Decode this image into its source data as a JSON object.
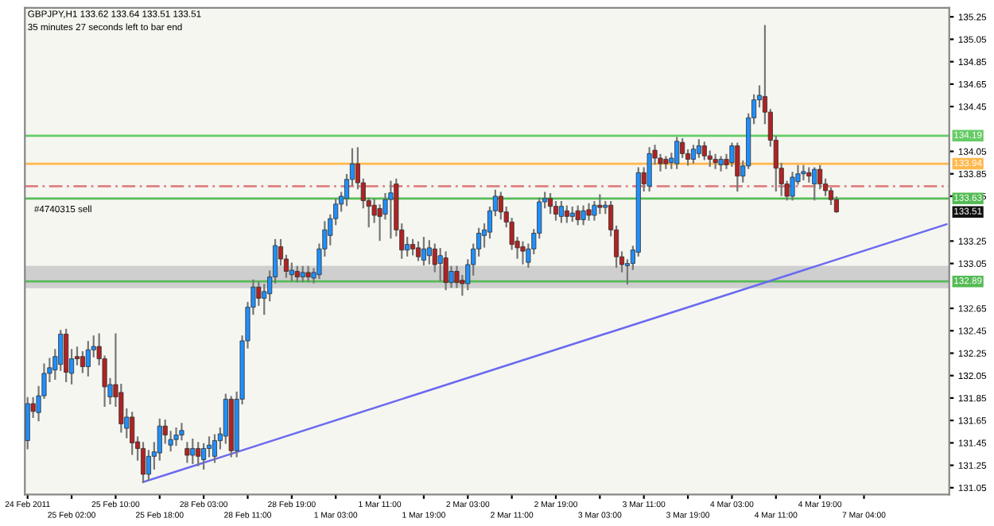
{
  "chart_data": {
    "type": "candlestick",
    "title": "GBPJPY,H1 133.62 133.64 133.51 133.51",
    "subtitle": "35 minutes 27 seconds left to bar end",
    "annotations": [
      "#4740315 sell",
      {
        "text": "133.51",
        "y": 133.51
      }
    ],
    "categories": [
      "24 Feb 2011",
      null,
      null,
      null,
      null,
      null,
      null,
      null,
      "25 Feb 02:00",
      null,
      null,
      null,
      null,
      null,
      null,
      null,
      "25 Feb 10:00",
      null,
      null,
      null,
      null,
      null,
      null,
      null,
      "25 Feb 18:00",
      null,
      null,
      null,
      null,
      null,
      null,
      null,
      "28 Feb 03:00",
      null,
      null,
      null,
      null,
      null,
      null,
      null,
      "28 Feb 11:00",
      null,
      null,
      null,
      null,
      null,
      null,
      null,
      "28 Feb 19:00",
      null,
      null,
      null,
      null,
      null,
      null,
      null,
      "1 Mar 03:00",
      null,
      null,
      null,
      null,
      null,
      null,
      null,
      "1 Mar 11:00",
      null,
      null,
      null,
      null,
      null,
      null,
      null,
      "1 Mar 19:00",
      null,
      null,
      null,
      null,
      null,
      null,
      null,
      "2 Mar 03:00",
      null,
      null,
      null,
      null,
      null,
      null,
      null,
      "2 Mar 11:00",
      null,
      null,
      null,
      null,
      null,
      null,
      null,
      "2 Mar 19:00",
      null,
      null,
      null,
      null,
      null,
      null,
      null,
      "3 Mar 03:00",
      null,
      null,
      null,
      null,
      null,
      null,
      null,
      "3 Mar 11:00",
      null,
      null,
      null,
      null,
      null,
      null,
      null,
      "3 Mar 19:00",
      null,
      null,
      null,
      null,
      null,
      null,
      null,
      "4 Mar 03:00",
      null,
      null,
      null,
      null,
      null,
      null,
      null,
      "4 Mar 11:00",
      null,
      null,
      null,
      null,
      null,
      null,
      null,
      "4 Mar 19:00",
      null,
      null,
      null,
      null,
      null,
      null,
      null,
      "7 Mar 04:00",
      null,
      null,
      null,
      null,
      null,
      null,
      null,
      null,
      null,
      null,
      null,
      null,
      null,
      null,
      null
    ],
    "ohlc": [
      [
        131.47,
        131.85,
        131.4,
        131.8
      ],
      [
        131.8,
        131.85,
        131.68,
        131.73
      ],
      [
        131.72,
        131.95,
        131.65,
        131.87
      ],
      [
        131.87,
        132.15,
        131.85,
        132.07
      ],
      [
        132.07,
        132.2,
        132.0,
        132.12
      ],
      [
        132.1,
        132.28,
        132.02,
        132.22
      ],
      [
        132.15,
        132.45,
        132.1,
        132.42
      ],
      [
        132.42,
        132.46,
        132.0,
        132.08
      ],
      [
        132.07,
        132.28,
        131.98,
        132.2
      ],
      [
        132.22,
        132.3,
        132.15,
        132.2
      ],
      [
        132.22,
        132.26,
        132.08,
        132.13
      ],
      [
        132.13,
        132.35,
        132.05,
        132.28
      ],
      [
        132.28,
        132.4,
        132.22,
        132.31
      ],
      [
        132.31,
        132.42,
        132.15,
        132.2
      ],
      [
        132.2,
        132.22,
        131.78,
        131.95
      ],
      [
        131.86,
        132.02,
        131.8,
        131.97
      ],
      [
        131.97,
        132.42,
        131.78,
        131.86
      ],
      [
        131.9,
        131.97,
        131.55,
        131.62
      ],
      [
        131.58,
        131.75,
        131.5,
        131.68
      ],
      [
        131.68,
        131.72,
        131.35,
        131.45
      ],
      [
        131.46,
        131.5,
        131.3,
        131.4
      ],
      [
        131.4,
        131.45,
        131.1,
        131.17
      ],
      [
        131.17,
        131.38,
        131.12,
        131.33
      ],
      [
        131.33,
        131.45,
        131.22,
        131.37
      ],
      [
        131.36,
        131.66,
        131.3,
        131.6
      ],
      [
        131.6,
        131.65,
        131.45,
        131.52
      ],
      [
        131.43,
        131.55,
        131.38,
        131.48
      ],
      [
        131.48,
        131.58,
        131.43,
        131.52
      ],
      [
        131.52,
        131.62,
        131.48,
        131.56
      ],
      [
        131.4,
        131.45,
        131.28,
        131.34
      ],
      [
        131.34,
        131.48,
        131.27,
        131.4
      ],
      [
        131.4,
        131.45,
        131.25,
        131.33
      ],
      [
        131.3,
        131.44,
        131.22,
        131.4
      ],
      [
        131.4,
        131.5,
        131.33,
        131.43
      ],
      [
        131.33,
        131.52,
        131.28,
        131.47
      ],
      [
        131.47,
        131.58,
        131.4,
        131.53
      ],
      [
        131.51,
        131.88,
        131.45,
        131.84
      ],
      [
        131.84,
        131.86,
        131.33,
        131.38
      ],
      [
        131.38,
        131.9,
        131.33,
        131.84
      ],
      [
        131.84,
        132.4,
        131.8,
        132.36
      ],
      [
        132.36,
        132.7,
        132.3,
        132.66
      ],
      [
        132.66,
        132.9,
        132.6,
        132.84
      ],
      [
        132.84,
        132.88,
        132.68,
        132.74
      ],
      [
        132.74,
        132.86,
        132.6,
        132.8
      ],
      [
        132.78,
        132.98,
        132.72,
        132.93
      ],
      [
        132.93,
        133.26,
        132.88,
        133.21
      ],
      [
        133.2,
        133.26,
        133.04,
        133.09
      ],
      [
        133.09,
        133.12,
        132.93,
        132.98
      ],
      [
        132.95,
        133.05,
        132.9,
        132.99
      ],
      [
        132.98,
        133.02,
        132.89,
        132.93
      ],
      [
        132.93,
        133.02,
        132.89,
        132.97
      ],
      [
        132.97,
        133.02,
        132.89,
        132.93
      ],
      [
        132.92,
        133.0,
        132.88,
        132.97
      ],
      [
        132.95,
        133.22,
        132.92,
        133.18
      ],
      [
        133.18,
        133.42,
        133.12,
        133.35
      ],
      [
        133.3,
        133.48,
        133.22,
        133.45
      ],
      [
        133.45,
        133.62,
        133.4,
        133.58
      ],
      [
        133.58,
        133.68,
        133.52,
        133.65
      ],
      [
        133.63,
        133.84,
        133.57,
        133.8
      ],
      [
        133.8,
        134.07,
        133.75,
        133.94
      ],
      [
        133.94,
        134.08,
        133.72,
        133.77
      ],
      [
        133.77,
        133.8,
        133.55,
        133.61
      ],
      [
        133.61,
        133.63,
        133.38,
        133.56
      ],
      [
        133.57,
        133.62,
        133.42,
        133.48
      ],
      [
        133.54,
        133.57,
        133.26,
        133.47
      ],
      [
        133.49,
        133.67,
        133.45,
        133.62
      ],
      [
        133.62,
        133.78,
        133.28,
        133.68
      ],
      [
        133.76,
        133.8,
        133.3,
        133.35
      ],
      [
        133.35,
        133.4,
        133.1,
        133.17
      ],
      [
        133.17,
        133.28,
        133.12,
        133.22
      ],
      [
        133.22,
        133.26,
        133.13,
        133.18
      ],
      [
        133.19,
        133.24,
        133.08,
        133.11
      ],
      [
        133.08,
        133.28,
        133.04,
        133.18
      ],
      [
        133.12,
        133.25,
        133.05,
        133.19
      ],
      [
        133.18,
        133.22,
        132.98,
        133.04
      ],
      [
        133.05,
        133.18,
        132.9,
        133.12
      ],
      [
        133.1,
        133.15,
        132.82,
        132.88
      ],
      [
        132.88,
        133.02,
        132.84,
        132.98
      ],
      [
        132.98,
        133.02,
        132.84,
        132.88
      ],
      [
        132.9,
        132.94,
        132.77,
        132.87
      ],
      [
        132.87,
        133.08,
        132.82,
        133.04
      ],
      [
        133.04,
        133.22,
        132.95,
        133.18
      ],
      [
        133.18,
        133.36,
        133.12,
        133.32
      ],
      [
        133.3,
        133.4,
        133.2,
        133.35
      ],
      [
        133.33,
        133.55,
        133.28,
        133.52
      ],
      [
        133.52,
        133.7,
        133.48,
        133.65
      ],
      [
        133.65,
        133.68,
        133.45,
        133.51
      ],
      [
        133.51,
        133.55,
        133.38,
        133.42
      ],
      [
        133.42,
        133.45,
        133.18,
        133.22
      ],
      [
        133.25,
        133.28,
        133.1,
        133.19
      ],
      [
        133.2,
        133.24,
        133.05,
        133.16
      ],
      [
        133.06,
        133.22,
        133.02,
        133.18
      ],
      [
        133.18,
        133.35,
        133.14,
        133.32
      ],
      [
        133.32,
        133.63,
        133.28,
        133.6
      ],
      [
        133.6,
        133.68,
        133.55,
        133.63
      ],
      [
        133.63,
        133.67,
        133.5,
        133.56
      ],
      [
        133.56,
        133.6,
        133.44,
        133.49
      ],
      [
        133.47,
        133.6,
        133.42,
        133.56
      ],
      [
        133.52,
        133.56,
        133.42,
        133.47
      ],
      [
        133.47,
        133.55,
        133.43,
        133.5
      ],
      [
        133.52,
        133.56,
        133.4,
        133.44
      ],
      [
        133.44,
        133.56,
        133.4,
        133.52
      ],
      [
        133.53,
        133.58,
        133.44,
        133.48
      ],
      [
        133.48,
        133.6,
        133.44,
        133.57
      ],
      [
        133.57,
        133.66,
        133.5,
        133.55
      ],
      [
        133.55,
        133.6,
        133.5,
        133.57
      ],
      [
        133.57,
        133.6,
        133.3,
        133.35
      ],
      [
        133.35,
        133.38,
        133.02,
        133.11
      ],
      [
        133.11,
        133.15,
        132.98,
        133.04
      ],
      [
        133.03,
        133.08,
        132.87,
        133.05
      ],
      [
        133.05,
        133.2,
        133.0,
        133.17
      ],
      [
        133.15,
        133.9,
        133.12,
        133.86
      ],
      [
        133.86,
        133.9,
        133.7,
        133.76
      ],
      [
        133.74,
        134.08,
        133.7,
        134.03
      ],
      [
        134.06,
        134.1,
        133.94,
        133.99
      ],
      [
        133.99,
        134.02,
        133.88,
        133.94
      ],
      [
        133.98,
        134.0,
        133.9,
        133.94
      ],
      [
        133.95,
        134.03,
        133.9,
        133.99
      ],
      [
        133.94,
        134.17,
        133.9,
        134.14
      ],
      [
        134.13,
        134.16,
        134.0,
        134.03
      ],
      [
        134.03,
        134.06,
        133.93,
        133.98
      ],
      [
        133.98,
        134.1,
        133.95,
        134.07
      ],
      [
        134.03,
        134.15,
        134.0,
        134.1
      ],
      [
        134.1,
        134.13,
        133.98,
        134.01
      ],
      [
        134.01,
        134.05,
        133.92,
        133.98
      ],
      [
        133.98,
        134.02,
        133.9,
        133.95
      ],
      [
        133.93,
        134.0,
        133.88,
        133.98
      ],
      [
        133.98,
        134.02,
        133.9,
        133.93
      ],
      [
        133.95,
        134.12,
        133.92,
        134.1
      ],
      [
        134.1,
        134.12,
        133.7,
        133.83
      ],
      [
        133.83,
        133.96,
        133.78,
        133.92
      ],
      [
        133.92,
        134.38,
        133.9,
        134.35
      ],
      [
        134.35,
        134.55,
        134.3,
        134.51
      ],
      [
        134.51,
        134.63,
        134.45,
        134.55
      ],
      [
        134.54,
        135.17,
        134.3,
        134.4
      ],
      [
        134.4,
        134.42,
        134.1,
        134.15
      ],
      [
        134.15,
        134.18,
        133.7,
        133.9
      ],
      [
        133.9,
        133.94,
        133.66,
        133.76
      ],
      [
        133.76,
        133.78,
        133.62,
        133.65
      ],
      [
        133.65,
        133.86,
        133.62,
        133.82
      ],
      [
        133.78,
        133.92,
        133.76,
        133.85
      ],
      [
        133.85,
        133.92,
        133.8,
        133.87
      ],
      [
        133.86,
        133.9,
        133.78,
        133.83
      ],
      [
        133.76,
        133.9,
        133.62,
        133.89
      ],
      [
        133.89,
        133.92,
        133.72,
        133.76
      ],
      [
        133.76,
        133.8,
        133.66,
        133.7
      ],
      [
        133.7,
        133.72,
        133.58,
        133.62
      ],
      [
        133.62,
        133.64,
        133.51,
        133.51
      ],
      null,
      null,
      null,
      null,
      null,
      null,
      null,
      null,
      null,
      null,
      null,
      null,
      null,
      null,
      null,
      null,
      null,
      null,
      null,
      null
    ],
    "colors": [
      "#1e90ff",
      "#b22222",
      "#1e90ff",
      "#1e90ff",
      "#1e90ff",
      "#1e90ff",
      "#1e90ff",
      "#b22222",
      "#1e90ff",
      "#b22222",
      "#b22222",
      "#1e90ff",
      "#1e90ff",
      "#b22222",
      "#b22222",
      "#1e90ff",
      "#b22222",
      "#b22222",
      "#1e90ff",
      "#b22222",
      "#b22222",
      "#b22222",
      "#1e90ff",
      "#1e90ff",
      "#1e90ff",
      "#b22222",
      "#1e90ff",
      "#1e90ff",
      "#1e90ff",
      "#b22222",
      "#1e90ff",
      "#b22222",
      "#1e90ff",
      "#1e90ff",
      "#1e90ff",
      "#1e90ff",
      "#1e90ff",
      "#b22222",
      "#1e90ff",
      "#1e90ff",
      "#1e90ff",
      "#1e90ff",
      "#b22222",
      "#1e90ff",
      "#1e90ff",
      "#1e90ff",
      "#b22222",
      "#b22222",
      "#1e90ff",
      "#b22222",
      "#1e90ff",
      "#b22222",
      "#1e90ff",
      "#1e90ff",
      "#1e90ff",
      "#1e90ff",
      "#1e90ff",
      "#1e90ff",
      "#1e90ff",
      "#1e90ff",
      "#b22222",
      "#b22222",
      "#b22222",
      "#b22222",
      "#b22222",
      "#1e90ff",
      "#1e90ff",
      "#b22222",
      "#b22222",
      "#1e90ff",
      "#b22222",
      "#b22222",
      "#1e90ff",
      "#1e90ff",
      "#b22222",
      "#1e90ff",
      "#b22222",
      "#1e90ff",
      "#b22222",
      "#b22222",
      "#1e90ff",
      "#1e90ff",
      "#1e90ff",
      "#1e90ff",
      "#1e90ff",
      "#1e90ff",
      "#b22222",
      "#b22222",
      "#b22222",
      "#b22222",
      "#b22222",
      "#1e90ff",
      "#1e90ff",
      "#1e90ff",
      "#1e90ff",
      "#b22222",
      "#b22222",
      "#1e90ff",
      "#b22222",
      "#1e90ff",
      "#b22222",
      "#1e90ff",
      "#b22222",
      "#1e90ff",
      "#b22222",
      "#1e90ff",
      "#b22222",
      "#b22222",
      "#b22222",
      "#1e90ff",
      "#1e90ff",
      "#1e90ff",
      "#b22222",
      "#1e90ff",
      "#b22222",
      "#b22222",
      "#b22222",
      "#1e90ff",
      "#1e90ff",
      "#b22222",
      "#b22222",
      "#1e90ff",
      "#1e90ff",
      "#b22222",
      "#b22222",
      "#b22222",
      "#1e90ff",
      "#b22222",
      "#1e90ff",
      "#b22222",
      "#1e90ff",
      "#1e90ff",
      "#1e90ff",
      "#1e90ff",
      "#b22222",
      "#b22222",
      "#b22222",
      "#b22222",
      "#b22222",
      "#1e90ff",
      "#1e90ff",
      "#1e90ff",
      "#b22222",
      "#1e90ff",
      "#b22222",
      "#b22222",
      "#b22222",
      "#b22222",
      null,
      null,
      null,
      null,
      null,
      null,
      null,
      null,
      null,
      null,
      null,
      null,
      null,
      null,
      null,
      null,
      null,
      null,
      null,
      null
    ],
    "series": [
      {
        "type": "line",
        "color": "#6a6af0",
        "values": [
          null,
          null,
          null,
          null,
          null,
          null,
          null,
          null,
          null,
          null,
          null,
          null,
          null,
          null,
          null,
          null,
          null,
          null,
          null,
          null,
          null,
          131.1,
          null,
          null,
          null,
          null,
          null,
          null,
          null,
          null,
          null,
          null,
          null,
          null,
          null,
          null,
          null,
          null,
          null,
          null,
          null,
          null,
          null,
          null,
          null,
          null,
          null,
          null,
          null,
          null,
          null,
          null,
          null,
          null,
          null,
          null,
          null,
          null,
          null,
          null,
          null,
          null,
          null,
          null,
          null,
          null,
          null,
          null,
          null,
          null,
          null,
          null,
          null,
          null,
          null,
          null,
          null,
          null,
          null,
          null,
          null,
          null,
          null,
          null,
          null,
          null,
          null,
          null,
          null,
          null,
          null,
          null,
          null,
          null,
          null,
          null,
          null,
          null,
          null,
          null,
          null,
          null,
          null,
          null,
          null,
          null,
          null,
          null,
          null,
          null,
          null,
          null,
          null,
          null,
          null,
          null,
          null,
          null,
          null,
          null,
          null,
          null,
          null,
          null,
          null,
          null,
          null,
          null,
          null,
          null,
          null,
          null,
          null,
          null,
          null,
          null,
          null,
          null,
          null,
          null,
          null,
          null,
          null,
          null,
          null,
          null,
          null,
          null,
          null,
          null,
          null,
          null,
          null,
          null,
          null,
          null,
          null,
          null,
          null,
          null,
          null,
          null,
          null,
          null,
          null,
          null,
          null,
          133.4
        ]
      }
    ],
    "ref_lines": [
      {
        "axis": "y",
        "value": 134.19,
        "label": "134.19",
        "color": "#66cc66"
      },
      {
        "axis": "y",
        "value": 133.94,
        "label": "133.94",
        "color": "#ffb84d"
      },
      {
        "axis": "y",
        "value": 133.74,
        "color": "#e08080",
        "line_style": "dashed"
      },
      {
        "axis": "y",
        "value": 133.63,
        "label": "133.63",
        "color": "#55bb55"
      },
      {
        "axis": "y",
        "value": 132.89,
        "label": "132.89",
        "color": "#55bb55"
      }
    ],
    "bands": [
      {
        "axis": "y",
        "from": 132.83,
        "to": 133.03,
        "color": "#cfcfcf"
      }
    ],
    "ylim": [
      130.99,
      135.33
    ],
    "yticks": [
      131.05,
      131.25,
      131.45,
      131.65,
      131.85,
      132.05,
      132.25,
      132.45,
      132.65,
      133.05,
      133.25,
      133.65,
      133.85,
      134.05,
      134.45,
      134.65,
      134.85,
      135.05,
      135.25
    ],
    "grid": false,
    "legend": false
  }
}
